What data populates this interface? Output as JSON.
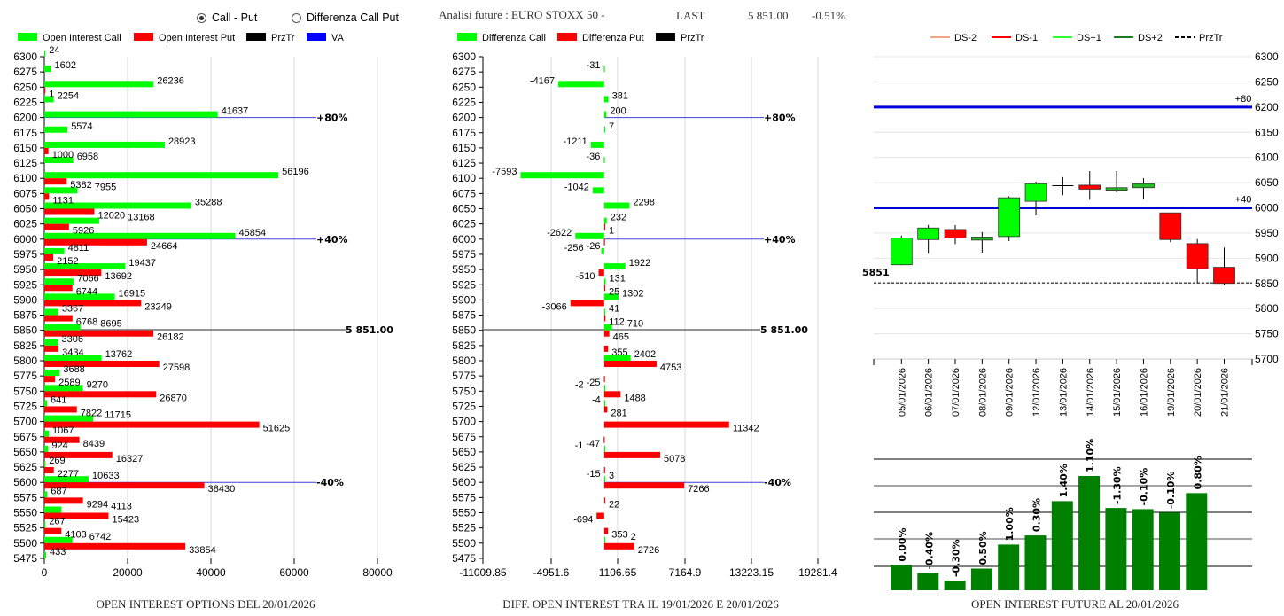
{
  "header": {
    "radio_call_put": "Call - Put",
    "radio_diff": "Differenza Call Put",
    "selected": "Call - Put",
    "analysis_title": "Analisi future : EURO STOXX 50 -",
    "last_label": "LAST",
    "last_value": "5 851.00",
    "change": "-0.51%"
  },
  "colors": {
    "call": "#00ff00",
    "put": "#ff0000",
    "prztr": "#000000",
    "va": "#0000ff",
    "candle_up": "#00ff00",
    "candle_down": "#ff0000",
    "candle_flat": "#1a8a1a",
    "oi_bar": "#008000"
  },
  "chart_data": [
    {
      "type": "bar",
      "orientation": "horizontal",
      "title": "OPEN INTEREST OPTIONS DEL 20/01/2026",
      "legend": [
        "Open Interest Call",
        "Open Interest Put",
        "PrzTr",
        "VA"
      ],
      "legend_placement": "top",
      "xlim": [
        0,
        80000
      ],
      "xticks": [
        "0",
        "20000",
        "40000",
        "60000",
        "80000"
      ],
      "grid": true,
      "categories": [
        6300,
        6275,
        6250,
        6225,
        6200,
        6175,
        6150,
        6125,
        6100,
        6075,
        6050,
        6025,
        6000,
        5975,
        5950,
        5925,
        5900,
        5875,
        5850,
        5825,
        5800,
        5775,
        5750,
        5725,
        5700,
        5675,
        5650,
        5625,
        5600,
        5575,
        5550,
        5525,
        5500,
        5475
      ],
      "series": [
        {
          "name": "Open Interest Call",
          "values": [
            24,
            1602,
            26236,
            2254,
            41637,
            5574,
            28923,
            6958,
            56196,
            7955,
            35288,
            13168,
            45854,
            4811,
            19437,
            7066,
            16915,
            3367,
            8695,
            3306,
            13762,
            3688,
            9270,
            641,
            11715,
            1067,
            924,
            269,
            10633,
            687,
            4113,
            267,
            6742,
            433
          ]
        },
        {
          "name": "Open Interest Put",
          "values": [
            null,
            null,
            1,
            null,
            null,
            null,
            1000,
            null,
            5382,
            1131,
            12020,
            5926,
            24664,
            2152,
            13692,
            6744,
            23249,
            6768,
            26182,
            3434,
            27598,
            2589,
            26870,
            7822,
            51625,
            8439,
            16327,
            2277,
            38430,
            9294,
            15423,
            4103,
            33854,
            null
          ]
        }
      ],
      "va_lines": [
        {
          "strike": 6200,
          "label": "+80%"
        },
        {
          "strike": 6000,
          "label": "+40%"
        },
        {
          "strike": 5600,
          "label": "-40%"
        }
      ],
      "prztr": {
        "value": 5851,
        "label": "5 851.00"
      }
    },
    {
      "type": "bar",
      "orientation": "horizontal",
      "title": "DIFF. OPEN INTEREST TRA IL 19/01/2026 E 20/01/2026",
      "legend": [
        "Differenza Call",
        "Differenza Put",
        "PrzTr"
      ],
      "legend_placement": "top",
      "xlim": [
        -11009.85,
        19281.4
      ],
      "xticks": [
        "-11009.85",
        "-4951.6",
        "1106.65",
        "7164.9",
        "13223.15",
        "19281.4"
      ],
      "grid": true,
      "categories": [
        6300,
        6275,
        6250,
        6225,
        6200,
        6175,
        6150,
        6125,
        6100,
        6075,
        6050,
        6025,
        6000,
        5975,
        5950,
        5925,
        5900,
        5875,
        5850,
        5825,
        5800,
        5775,
        5750,
        5725,
        5700,
        5675,
        5650,
        5625,
        5600,
        5575,
        5550,
        5525,
        5500,
        5475
      ],
      "series": [
        {
          "name": "Differenza Call",
          "values": [
            null,
            -31,
            -4167,
            381,
            200,
            7,
            -1211,
            -36,
            -7593,
            -1042,
            2298,
            232,
            -2622,
            -256,
            1922,
            131,
            1302,
            41,
            710,
            null,
            2402,
            null,
            -2,
            -4,
            null,
            null,
            -1,
            null,
            3,
            null,
            null,
            null,
            2,
            null
          ]
        },
        {
          "name": "Differenza Put",
          "values": [
            null,
            null,
            null,
            null,
            null,
            null,
            null,
            null,
            null,
            null,
            null,
            1,
            -26,
            null,
            -510,
            25,
            -3066,
            112,
            465,
            355,
            4753,
            -25,
            1488,
            281,
            11342,
            -47,
            5078,
            -15,
            7266,
            22,
            -694,
            353,
            2726,
            null
          ]
        }
      ],
      "va_lines": [
        {
          "strike": 6200,
          "label": "+80%"
        },
        {
          "strike": 6000,
          "label": "+40%"
        },
        {
          "strike": 5600,
          "label": "-40%"
        }
      ],
      "prztr": {
        "value": 5851,
        "label": "5 851.00"
      }
    },
    {
      "type": "candlestick",
      "legend": [
        "DS-2",
        "DS-1",
        "DS+1",
        "DS+2",
        "PrzTr"
      ],
      "legend_colors": [
        "#f4a582",
        "#ff0000",
        "#33ff33",
        "#1e7a1e",
        "#000000"
      ],
      "legend_placement": "top",
      "ylim": [
        5700,
        6300
      ],
      "yticks": [
        "6300",
        "6250",
        "6200",
        "6150",
        "6100",
        "6050",
        "6000",
        "5950",
        "5900",
        "5850",
        "5800",
        "5750",
        "5700"
      ],
      "grid": true,
      "dates": [
        "05/01/2026",
        "06/01/2026",
        "07/01/2026",
        "08/01/2026",
        "09/01/2026",
        "12/01/2026",
        "13/01/2026",
        "14/01/2026",
        "15/01/2026",
        "16/01/2026",
        "19/01/2026",
        "20/01/2026",
        "21/01/2026"
      ],
      "ohlc": [
        [
          5887,
          5945,
          5886,
          5940
        ],
        [
          5937,
          5966,
          5909,
          5960
        ],
        [
          5957,
          5966,
          5928,
          5940
        ],
        [
          5936,
          5952,
          5911,
          5942
        ],
        [
          5943,
          6023,
          5934,
          6020
        ],
        [
          6013,
          6052,
          5985,
          6048
        ],
        [
          6044,
          6061,
          6025,
          6044
        ],
        [
          6045,
          6073,
          6016,
          6037
        ],
        [
          6035,
          6073,
          6031,
          6040
        ],
        [
          6040,
          6059,
          6018,
          6048
        ],
        [
          5990,
          5990,
          5932,
          5937
        ],
        [
          5929,
          5938,
          5850,
          5879
        ],
        [
          5882,
          5921,
          5847,
          5850
        ]
      ],
      "levels": [
        {
          "value": 6200,
          "label": "+80"
        },
        {
          "value": 6000,
          "label": "+40"
        }
      ],
      "prztr": {
        "value": 5851,
        "label": "5851"
      }
    },
    {
      "type": "bar",
      "title": "OPEN INTEREST FUTURE AL 20/01/2026",
      "relative_height": [
        0.22,
        0.15,
        0.085,
        0.19,
        0.4,
        0.48,
        0.78,
        1.0,
        0.72,
        0.71,
        0.68,
        0.85
      ],
      "labels": [
        "0.00%",
        "-0.40%",
        "-0.30%",
        "0.50%",
        "1.00%",
        "0.30%",
        "1.40%",
        "1.10%",
        "-1.30%",
        "-0.10%",
        "-0.10%",
        "0.80%"
      ],
      "grid": true
    }
  ]
}
